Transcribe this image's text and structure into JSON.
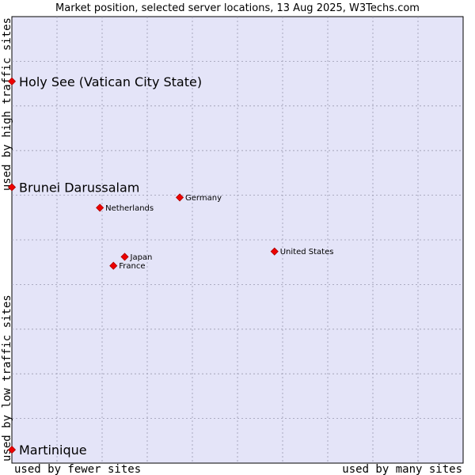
{
  "chart_data": {
    "type": "scatter",
    "title": "Market position, selected server locations, 13 Aug 2025, W3Techs.com",
    "x_axis": {
      "low_label": "used by fewer sites",
      "high_label": "used by many sites",
      "range": [
        0,
        100
      ],
      "scale": "log"
    },
    "y_axis": {
      "low_label": "used by low traffic sites",
      "high_label": "used by high traffic sites",
      "range": [
        0,
        100
      ]
    },
    "grid": true,
    "background_color": "#e4e4f8",
    "point_color": "#ee0000",
    "points": [
      {
        "label": "Holy See (Vatican City State)",
        "x": 0.0,
        "y": 85.5,
        "emphasis": true
      },
      {
        "label": "Brunei Darussalam",
        "x": 0.0,
        "y": 61.8,
        "emphasis": true
      },
      {
        "label": "Germany",
        "x": 37.2,
        "y": 59.5,
        "emphasis": false
      },
      {
        "label": "Netherlands",
        "x": 19.5,
        "y": 57.2,
        "emphasis": false
      },
      {
        "label": "United States",
        "x": 58.2,
        "y": 47.4,
        "emphasis": false
      },
      {
        "label": "Japan",
        "x": 25.0,
        "y": 46.2,
        "emphasis": false
      },
      {
        "label": "France",
        "x": 22.5,
        "y": 44.2,
        "emphasis": false
      },
      {
        "label": "Martinique",
        "x": 0.0,
        "y": 3.0,
        "emphasis": true
      }
    ]
  }
}
